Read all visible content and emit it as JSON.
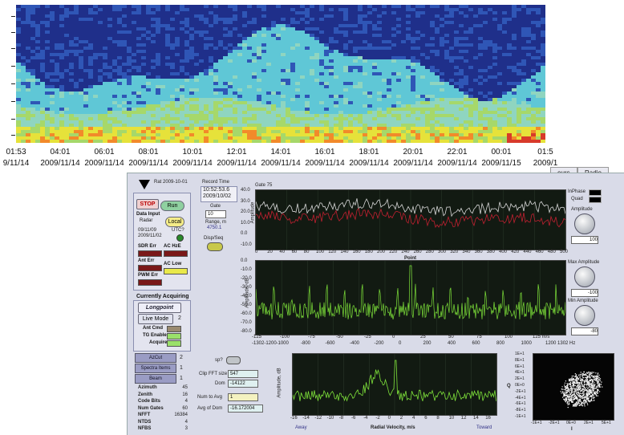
{
  "heatmap": {
    "time_ticks": [
      {
        "time": "01:53",
        "date": "9/11/14"
      },
      {
        "time": "04:01",
        "date": "2009/11/14"
      },
      {
        "time": "06:01",
        "date": "2009/11/14"
      },
      {
        "time": "08:01",
        "date": "2009/11/14"
      },
      {
        "time": "10:01",
        "date": "2009/11/14"
      },
      {
        "time": "12:01",
        "date": "2009/11/14"
      },
      {
        "time": "14:01",
        "date": "2009/11/14"
      },
      {
        "time": "16:01",
        "date": "2009/11/14"
      },
      {
        "time": "18:01",
        "date": "2009/11/14"
      },
      {
        "time": "20:01",
        "date": "2009/11/14"
      },
      {
        "time": "22:01",
        "date": "2009/11/14"
      },
      {
        "time": "00:01",
        "date": "2009/11/15"
      },
      {
        "time": "01:5",
        "date": "2009/1"
      }
    ],
    "colors": [
      "#1f2f8a",
      "#2f56b6",
      "#5fc7d6",
      "#8fd5c0",
      "#a6d86a",
      "#e6e23a",
      "#f28a2a",
      "#d83a2a"
    ]
  },
  "tabs": {
    "tab1": "ours",
    "tab2": "Radio"
  },
  "controls": {
    "stop": "STOP",
    "run": "Run",
    "local": "Local",
    "data_input_label": "Data Input",
    "data_input_value": "Radar",
    "date_line1": "09/11/09",
    "date_line2": "2009/11/02",
    "utc": "UTC?",
    "header_small1": "Rat  2009-10-01",
    "leds": {
      "sdr_err": "SDR Err",
      "ac_hz": "AC HzE",
      "ant_err": "Ant Err",
      "ac_low": "AC Low",
      "pwm_err": "PWM Err"
    },
    "currently_acquiring": "Currently Acquiring",
    "longpoint": "Longpoint",
    "live_mode": "Live Mode",
    "live_mode_val": "2",
    "ant_cmd": "Ant Cmd",
    "tg_enable": "TG Enable",
    "acquire": "Acquire",
    "nav": [
      {
        "label": "AzCut",
        "val": "2"
      },
      {
        "label": "Spectra Items",
        "val": "1"
      },
      {
        "label": "Beam",
        "val": "1"
      }
    ],
    "stats": [
      {
        "label": "Azimuth",
        "val": "45"
      },
      {
        "label": "Zenith",
        "val": "16"
      },
      {
        "label": "Code Bits",
        "val": "4"
      },
      {
        "label": "Num Gates",
        "val": "60"
      },
      {
        "label": "NFFT",
        "val": "16384"
      },
      {
        "label": "NTDS",
        "val": "4"
      },
      {
        "label": "NFBS",
        "val": "3"
      }
    ]
  },
  "record": {
    "label": "Record Time",
    "time": "10:52:53.6",
    "date": "2009/10/02",
    "gate_label": "Gate",
    "gate_val": "10",
    "range_label": "Range, m",
    "range_val": "4750.1",
    "display_label": "Disp/Seq",
    "gate_plot_label": "Gate 75"
  },
  "plot1": {
    "ylabel": "Amplitude",
    "xlabel": "Point",
    "yticks": [
      "40.0",
      "30.0",
      "20.0",
      "10.0",
      "0.0",
      "-10.0"
    ],
    "xticks": [
      "0",
      "20",
      "40",
      "60",
      "80",
      "100",
      "120",
      "140",
      "160",
      "180",
      "200",
      "220",
      "240",
      "260",
      "280",
      "300",
      "320",
      "340",
      "360",
      "380",
      "400",
      "420",
      "440",
      "460",
      "480",
      "500"
    ],
    "legend1": "InPhase",
    "legend2": "Quad",
    "amp_label": "Amplitude",
    "amp_val": "100",
    "colors": {
      "inphase": "#d8d8d8",
      "quad": "#c02030"
    }
  },
  "plot2": {
    "ylabel": "Amplitude, dB",
    "yticks": [
      "0.0",
      "-10.0",
      "-20.0",
      "-30.0",
      "-40.0",
      "-50.0",
      "-60.0",
      "-70.0",
      "-80.0"
    ],
    "xticks_ms": [
      "-125",
      "-100",
      "-75",
      "-50",
      "-25",
      "0",
      "25",
      "50",
      "75",
      "100",
      "125 m/s"
    ],
    "xticks_hz": [
      "-1302-1200",
      "-1000",
      "-800",
      "-600",
      "-400",
      "-200",
      "0",
      "200",
      "400",
      "600",
      "800",
      "1000",
      "1200 1302 Hz"
    ],
    "max_amp_label": "Max Amplitude",
    "max_amp_val": "-100",
    "min_amp_label": "Min Amplitude",
    "min_amp_val": "-80",
    "color": "#7ee23a"
  },
  "bottom": {
    "sp_label": "sp?",
    "clip_label": "Clip FFT size",
    "clip_val": "547",
    "dom_label": "Dom",
    "dom_val": "-14122",
    "num_avg_label": "Num to Avg",
    "num_avg_val": "1",
    "avg_label": "Avg of Dom",
    "avg_val": "-16.172004",
    "plot3_ylabel": "Amplitude, dB",
    "plot3_xlabel": "Radial Velocity, m/s",
    "plot3_away": "Away",
    "plot3_toward": "Toward",
    "plot3_xticks": [
      "-16",
      "-14",
      "-12",
      "-10",
      "-8",
      "-6",
      "-4",
      "-2",
      "0",
      "2",
      "4",
      "6",
      "8",
      "10",
      "12",
      "14",
      "16"
    ],
    "iq_xlabel": "I",
    "iq_ylabel": "Q",
    "iq_xticks": [
      "-1E+1",
      "-2E+1",
      "0E+0",
      "2E+1",
      "5E+1"
    ],
    "iq_yticks": [
      "1E+1",
      "8E+1",
      "6E+1",
      "4E+1",
      "2E+1",
      "0E+0",
      "-2E+1",
      "-4E+1",
      "-6E+1",
      "-8E+1",
      "-1E+1"
    ]
  }
}
